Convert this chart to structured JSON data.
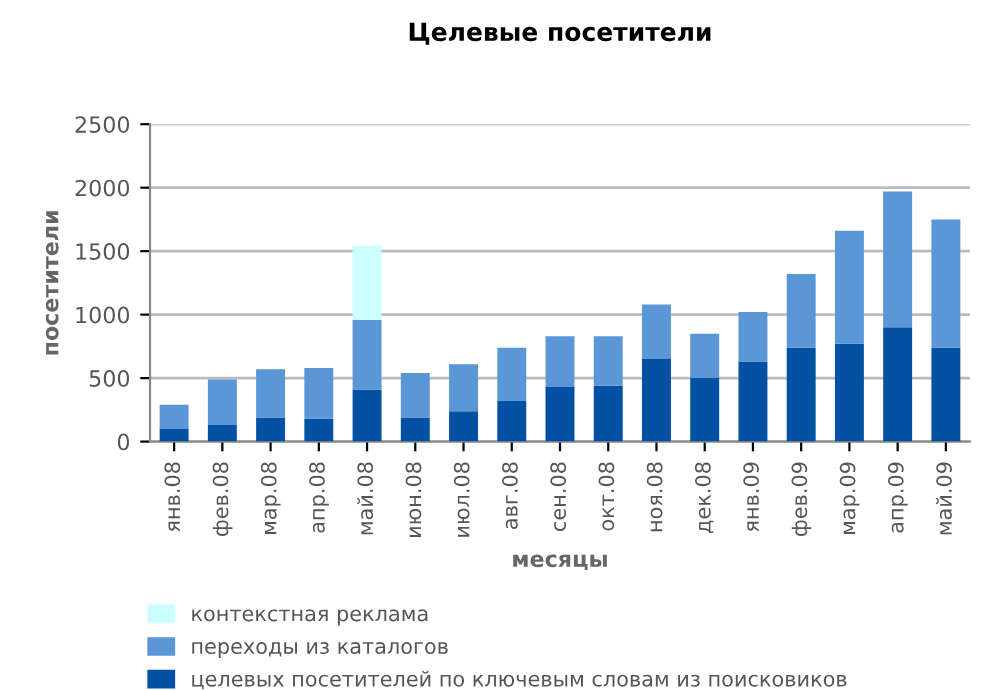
{
  "chart_data": {
    "type": "bar",
    "title": "Целевые посетители",
    "xlabel": "месяцы",
    "ylabel": "посетители",
    "categories": [
      "янв.08",
      "фев.08",
      "мар.08",
      "апр.08",
      "май.08",
      "июн.08",
      "июл.08",
      "авг.08",
      "сен.08",
      "окт.08",
      "ноя.08",
      "дек.08",
      "янв.09",
      "фев.09",
      "мар.09",
      "апр.09",
      "май.09"
    ],
    "stacked": true,
    "series": [
      {
        "name": "целевых посетителей по ключевым словам из поисковиков",
        "color": "#0451a3",
        "values": [
          100,
          130,
          190,
          180,
          410,
          190,
          240,
          320,
          430,
          440,
          650,
          500,
          630,
          740,
          770,
          900,
          740
        ]
      },
      {
        "name": "переходы из каталогов",
        "color": "#5b96d6",
        "values": [
          190,
          360,
          380,
          400,
          550,
          350,
          370,
          420,
          400,
          390,
          430,
          350,
          390,
          580,
          890,
          1070,
          1010
        ]
      },
      {
        "name": "контекстная реклама",
        "color": "#ccffff",
        "values": [
          null,
          null,
          null,
          null,
          580,
          null,
          null,
          null,
          null,
          null,
          null,
          null,
          null,
          null,
          null,
          null,
          null
        ]
      }
    ],
    "ylim": [
      0,
      2500
    ],
    "yticks": [
      0,
      500,
      1000,
      1500,
      2000,
      2500
    ],
    "grid": "y",
    "legend": "bottom"
  }
}
